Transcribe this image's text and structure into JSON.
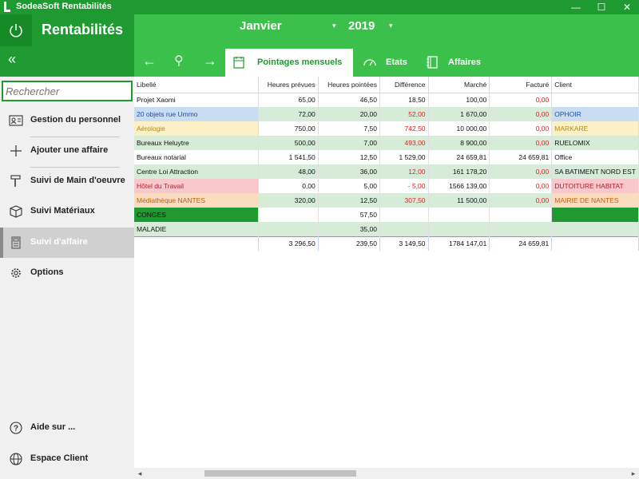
{
  "window": {
    "title": "SodeaSoft Rentabilités",
    "minimize": "—",
    "maximize": "☐",
    "close": "✕"
  },
  "header": {
    "app_title": "Rentabilités",
    "collapse": "«",
    "month": "Janvier",
    "year": "2019",
    "caret": "▾",
    "nav": {
      "back": "←",
      "pin": "⚲",
      "forward": "→"
    },
    "tabs": [
      {
        "label": "Pointages mensuels",
        "icon": "calendar-icon",
        "active": true
      },
      {
        "label": "Etats",
        "icon": "gauge-icon",
        "active": false
      },
      {
        "label": "Affaires",
        "icon": "notebook-icon",
        "active": false
      }
    ]
  },
  "sidebar": {
    "search_placeholder": "Rechercher",
    "items": [
      {
        "label": "Gestion du personnel",
        "icon": "id-card-icon"
      },
      {
        "label": "Ajouter une affaire",
        "icon": "plus-icon"
      },
      {
        "label": "Suivi de Main d'oeuvre",
        "icon": "hammer-icon"
      },
      {
        "label": "Suivi Matériaux",
        "icon": "box-icon"
      },
      {
        "label": "Suivi d'affaire",
        "icon": "calculator-icon",
        "active": true
      },
      {
        "label": "Options",
        "icon": "gear-icon"
      },
      {
        "label": "Aide sur ...",
        "icon": "help-icon"
      },
      {
        "label": "Espace Client",
        "icon": "globe-icon"
      }
    ]
  },
  "table": {
    "columns": [
      "Libellé",
      "Heures prévues",
      "Heures pointées",
      "Différence",
      "Marché",
      "Facturé",
      "Client"
    ],
    "rows": [
      {
        "libelle": "Projet Xaomi",
        "prevues": "65,00",
        "pointees": "46,50",
        "diff": "18,50",
        "marche": "100,00",
        "facture": "0,00",
        "client": ""
      },
      {
        "libelle": "20 objets rue Ummo",
        "prevues": "72,00",
        "pointees": "20,00",
        "diff": "52,00",
        "marche": "1 670,00",
        "facture": "0,00",
        "client": "OPHOIR"
      },
      {
        "libelle": "Aérologie",
        "prevues": "750,00",
        "pointees": "7,50",
        "diff": "742,50",
        "marche": "10 000,00",
        "facture": "0,00",
        "client": "MARKARE"
      },
      {
        "libelle": "Bureaux  Heluytre",
        "prevues": "500,00",
        "pointees": "7,00",
        "diff": "493,00",
        "marche": "8 900,00",
        "facture": "0,00",
        "client": "RUELOMIX"
      },
      {
        "libelle": "Bureaux notarial",
        "prevues": "1 541,50",
        "pointees": "12,50",
        "diff": "1 529,00",
        "marche": "24 659,81",
        "facture": "24 659,81",
        "client": "Office"
      },
      {
        "libelle": "Centre Loi Attraction",
        "prevues": "48,00",
        "pointees": "36,00",
        "diff": "12,00",
        "marche": "161 178,20",
        "facture": "0,00",
        "client": "SA BATIMENT NORD EST"
      },
      {
        "libelle": "Hôtel du Travail",
        "prevues": "0,00",
        "pointees": "5,00",
        "diff": "- 5,00",
        "marche": "1566 139,00",
        "facture": "0,00",
        "client": "DUTOITURE HABITAT"
      },
      {
        "libelle": "Médiathèque NANTES",
        "prevues": "320,00",
        "pointees": "12,50",
        "diff": "307,50",
        "marche": "11 500,00",
        "facture": "0,00",
        "client": "MAIRIE DE NANTES"
      },
      {
        "libelle": "CONGES",
        "prevues": "",
        "pointees": "57,50",
        "diff": "",
        "marche": "",
        "facture": "",
        "client": ""
      },
      {
        "libelle": "MALADIE",
        "prevues": "",
        "pointees": "35,00",
        "diff": "",
        "marche": "",
        "facture": "",
        "client": ""
      }
    ],
    "totals": {
      "prevues": "3 296,50",
      "pointees": "239,50",
      "diff": "3 149,50",
      "marche": "1784 147,01",
      "facture": "24 659,81"
    }
  },
  "scrollbar": {
    "left": "◂",
    "right": "▸"
  },
  "colors": {
    "green_dark": "#1f9a30",
    "green_light": "#3cc04c",
    "row_alt": "#d6ecd8",
    "negative": "#e02020"
  }
}
